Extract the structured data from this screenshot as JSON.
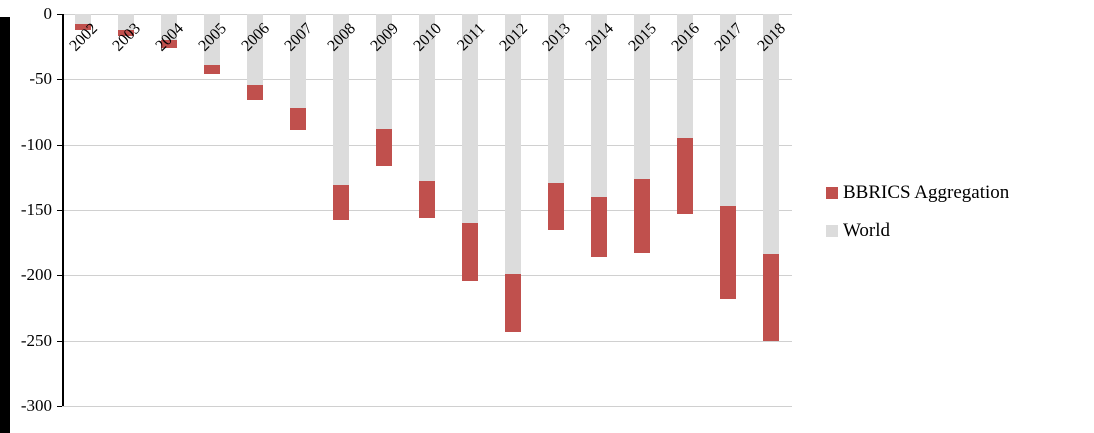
{
  "chart_data": {
    "type": "bar",
    "subtype": "stacked_column_negative",
    "title": "",
    "xlabel": "",
    "ylabel": "",
    "categories": [
      "2002",
      "2003",
      "2004",
      "2005",
      "2006",
      "2007",
      "2008",
      "2009",
      "2010",
      "2011",
      "2012",
      "2013",
      "2014",
      "2015",
      "2016",
      "2017",
      "2018"
    ],
    "series": [
      {
        "name": "World",
        "color": "#dcdcdc",
        "values": [
          -8,
          -12,
          -20,
          -39,
          -54,
          -72,
          -131,
          -88,
          -128,
          -160,
          -199,
          -129,
          -140,
          -126,
          -95,
          -147,
          -184
        ]
      },
      {
        "name": "BBRICS Aggregation",
        "color": "#c0504d",
        "values": [
          -4,
          -5,
          -6,
          -7,
          -12,
          -17,
          -27,
          -28,
          -28,
          -44,
          -44,
          -36,
          -46,
          -57,
          -58,
          -71,
          -66
        ]
      }
    ],
    "stack_totals": [
      -12,
      -17,
      -26,
      -46,
      -66,
      -89,
      -158,
      -116,
      -156,
      -204,
      -243,
      -165,
      -186,
      -183,
      -153,
      -218,
      -250
    ],
    "ylim": [
      -300,
      0
    ],
    "yticks": [
      "0",
      "-50",
      "-100",
      "-150",
      "-200",
      "-250",
      "-300"
    ],
    "grid": true,
    "legend": {
      "position": "right",
      "entries": [
        {
          "label": "BBRICS Aggregation",
          "color": "#c0504d",
          "name": "bbrics"
        },
        {
          "label": "World",
          "color": "#dcdcdc",
          "name": "world"
        }
      ]
    }
  },
  "colors": {
    "axis": "#000000",
    "gridline": "#d0d0d0",
    "background": "#ffffff",
    "left_strip": "#000000"
  }
}
